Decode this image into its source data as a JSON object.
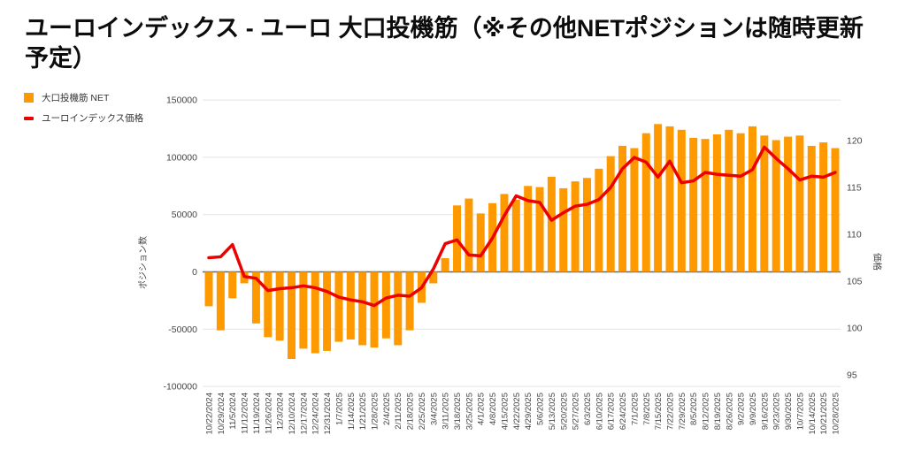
{
  "page": {
    "title": "ユーロインデックス - ユーロ 大口投機筋（※その他NETポジションは随時更新予定）"
  },
  "legend": [
    {
      "label": "大口投機筋 NET",
      "marker": "square",
      "color": "#FF9900"
    },
    {
      "label": "ユーロインデックス価格",
      "marker": "line",
      "color": "#EE0000"
    }
  ],
  "chart_data": {
    "type": "bar",
    "subtype": "combo bar+line, dual axis",
    "title": "ユーロインデックス - ユーロ 大口投機筋（※その他NETポジションは随時更新予定）",
    "grid": true,
    "legend_position": "top-left",
    "categories": [
      "10/22/2024",
      "10/29/2024",
      "11/5/2024",
      "11/12/2024",
      "11/19/2024",
      "11/26/2024",
      "12/3/2024",
      "12/10/2024",
      "12/17/2024",
      "12/24/2024",
      "12/31/2024",
      "1/7/2025",
      "1/14/2025",
      "1/21/2025",
      "1/28/2025",
      "2/4/2025",
      "2/11/2025",
      "2/18/2025",
      "2/25/2025",
      "3/4/2025",
      "3/11/2025",
      "3/18/2025",
      "3/25/2025",
      "4/1/2025",
      "4/8/2025",
      "4/15/2025",
      "4/22/2025",
      "4/29/2025",
      "5/6/2025",
      "5/13/2025",
      "5/20/2025",
      "5/27/2025",
      "6/3/2025",
      "6/10/2025",
      "6/17/2025",
      "6/24/2025",
      "7/1/2025",
      "7/8/2025",
      "7/15/2025",
      "7/22/2025",
      "7/29/2025",
      "8/5/2025",
      "8/12/2025",
      "8/19/2025",
      "8/26/2025",
      "9/2/2025",
      "9/9/2025",
      "9/16/2025",
      "9/23/2025",
      "9/30/2025",
      "10/7/2025",
      "10/14/2025",
      "10/21/2025",
      "10/28/2025"
    ],
    "series": [
      {
        "name": "大口投機筋 NET",
        "type": "bar",
        "axis": "left",
        "color": "#FF9900",
        "values": [
          -30000,
          -51000,
          -23000,
          -10000,
          -45000,
          -57000,
          -60000,
          -76000,
          -67000,
          -71000,
          -69000,
          -61000,
          -59000,
          -64000,
          -66000,
          -58000,
          -64000,
          -51000,
          -27000,
          -10000,
          12000,
          58000,
          64000,
          51000,
          60000,
          68000,
          63000,
          75000,
          74000,
          83000,
          73000,
          79000,
          82000,
          90000,
          101000,
          110000,
          108000,
          121000,
          129000,
          127000,
          124000,
          117000,
          116000,
          120000,
          124000,
          121000,
          127000,
          119000,
          115000,
          118000,
          119000,
          110000,
          113000,
          108000
        ]
      },
      {
        "name": "ユーロインデックス価格",
        "type": "line",
        "axis": "right",
        "color": "#EE0000",
        "values": [
          107.5,
          107.6,
          108.9,
          105.5,
          105.3,
          104.0,
          104.2,
          104.3,
          104.5,
          104.3,
          103.9,
          103.3,
          103.0,
          102.8,
          102.4,
          103.2,
          103.5,
          103.4,
          104.3,
          106.3,
          109.0,
          109.4,
          107.8,
          107.7,
          109.6,
          112.0,
          114.1,
          113.6,
          113.4,
          111.5,
          112.3,
          113.0,
          113.2,
          113.7,
          115.0,
          117.0,
          118.2,
          117.7,
          116.1,
          117.8,
          115.5,
          115.7,
          116.6,
          116.4,
          116.3,
          116.2,
          116.9,
          119.3,
          118.1,
          117.0,
          115.8,
          116.2,
          116.1,
          116.6
        ]
      }
    ],
    "left_axis": {
      "title": "ポジション数",
      "min": -100000,
      "max": 150000,
      "tick_step": 50000,
      "ticks": [
        "150000",
        "100000",
        "50000",
        "0",
        "-50000",
        "-100000"
      ]
    },
    "right_axis": {
      "title": "価格",
      "min": 95,
      "max": 120,
      "tick_step": 5,
      "ticks": [
        "120",
        "115",
        "110",
        "105",
        "100",
        "95"
      ]
    },
    "colors": {
      "bar": "#FF9900",
      "line": "#EE0000",
      "gridline": "#E3E3E3",
      "zero_line": "#666666",
      "tick_text": "#444444",
      "title_text": "#0c0c0c"
    }
  }
}
